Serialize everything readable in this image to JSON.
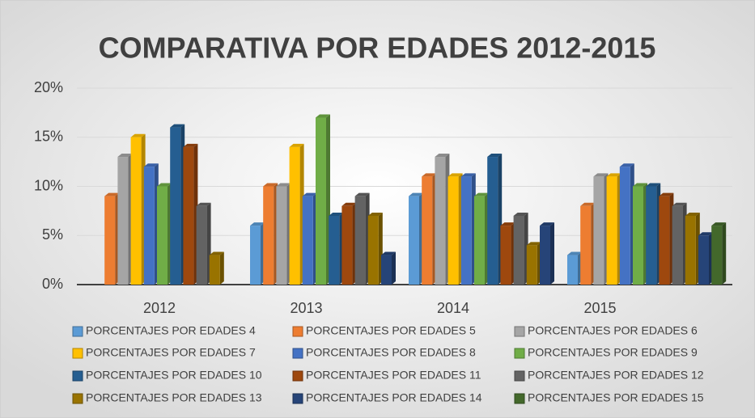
{
  "chart_data": {
    "type": "bar3d",
    "title": "COMPARATIVA POR EDADES 2012-2015",
    "categories": [
      "2012",
      "2013",
      "2014",
      "2015"
    ],
    "ylim": [
      0,
      20
    ],
    "yticks": [
      {
        "value": 0,
        "label": "0%"
      },
      {
        "value": 5,
        "label": "5%"
      },
      {
        "value": 10,
        "label": "10%"
      },
      {
        "value": 15,
        "label": "15%"
      },
      {
        "value": 20,
        "label": "20%"
      }
    ],
    "grid": true,
    "legend": "bottom",
    "series": [
      {
        "name": "PORCENTAJES POR EDADES 4",
        "color": "#5b9bd5",
        "values": [
          0,
          6,
          9,
          3
        ]
      },
      {
        "name": "PORCENTAJES POR EDADES 5",
        "color": "#ed7d31",
        "values": [
          9,
          10,
          11,
          8
        ]
      },
      {
        "name": "PORCENTAJES POR EDADES 6",
        "color": "#a5a5a5",
        "values": [
          13,
          10,
          13,
          11
        ]
      },
      {
        "name": "PORCENTAJES POR EDADES 7",
        "color": "#ffc000",
        "values": [
          15,
          14,
          11,
          11
        ]
      },
      {
        "name": "PORCENTAJES POR EDADES 8",
        "color": "#4472c4",
        "values": [
          12,
          9,
          11,
          12
        ]
      },
      {
        "name": "PORCENTAJES POR EDADES 9",
        "color": "#70ad47",
        "values": [
          10,
          17,
          9,
          10
        ]
      },
      {
        "name": "PORCENTAJES POR EDADES 10",
        "color": "#255e91",
        "values": [
          16,
          7,
          13,
          10
        ]
      },
      {
        "name": "PORCENTAJES POR EDADES 11",
        "color": "#9e480e",
        "values": [
          14,
          8,
          6,
          9
        ]
      },
      {
        "name": "PORCENTAJES POR EDADES 12",
        "color": "#636363",
        "values": [
          8,
          9,
          7,
          8
        ]
      },
      {
        "name": "PORCENTAJES POR EDADES 13",
        "color": "#997300",
        "values": [
          3,
          7,
          4,
          7
        ]
      },
      {
        "name": "PORCENTAJES POR EDADES 14",
        "color": "#264478",
        "values": [
          0,
          3,
          6,
          5
        ]
      },
      {
        "name": "PORCENTAJES POR EDADES 15",
        "color": "#43682b",
        "values": [
          0,
          0,
          0,
          6
        ]
      }
    ]
  }
}
